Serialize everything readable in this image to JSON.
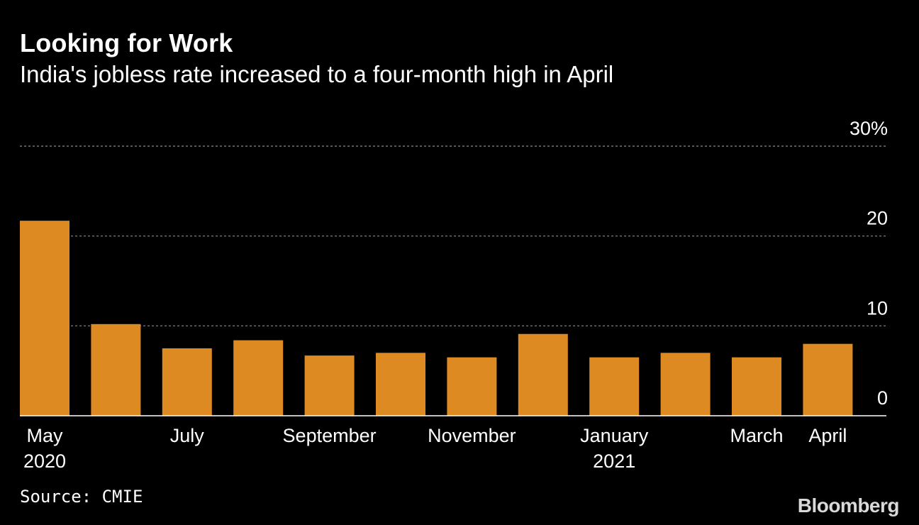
{
  "chart_data": {
    "type": "bar",
    "title": "Looking for Work",
    "subtitle": "India's jobless rate increased to a four-month high in April",
    "categories": [
      "May 2020",
      "Jun 2020",
      "Jul 2020",
      "Aug 2020",
      "Sep 2020",
      "Oct 2020",
      "Nov 2020",
      "Dec 2020",
      "Jan 2021",
      "Feb 2021",
      "Mar 2021",
      "Apr 2021"
    ],
    "values": [
      21.7,
      10.2,
      7.5,
      8.4,
      6.7,
      7.0,
      6.5,
      9.1,
      6.5,
      7.0,
      6.5,
      8.0
    ],
    "ylim": [
      0,
      30
    ],
    "yticks": [
      {
        "value": 0,
        "label": "0"
      },
      {
        "value": 10,
        "label": "10"
      },
      {
        "value": 20,
        "label": "20"
      },
      {
        "value": 30,
        "label": "30%"
      }
    ],
    "xticks": [
      {
        "index": 0,
        "line1": "May",
        "line2": "2020"
      },
      {
        "index": 2,
        "line1": "July",
        "line2": ""
      },
      {
        "index": 4,
        "line1": "September",
        "line2": ""
      },
      {
        "index": 6,
        "line1": "November",
        "line2": ""
      },
      {
        "index": 8,
        "line1": "January",
        "line2": "2021"
      },
      {
        "index": 10,
        "line1": "March",
        "line2": ""
      },
      {
        "index": 11,
        "line1": "April",
        "line2": ""
      }
    ],
    "xlabel": "",
    "ylabel": "",
    "grid": true,
    "bar_color": "#dd8a22"
  },
  "footer": {
    "source": "Source: CMIE",
    "brand": "Bloomberg"
  }
}
